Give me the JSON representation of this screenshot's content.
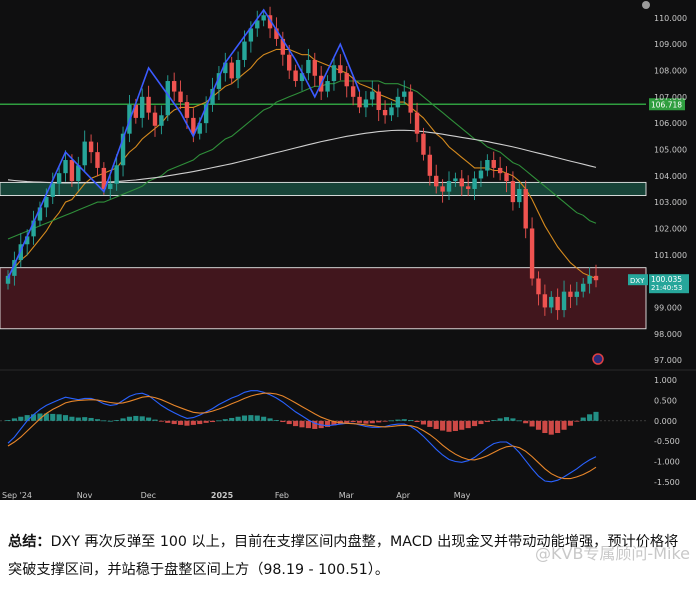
{
  "chart_data": [
    {
      "type": "candlestick",
      "symbol": "DXY",
      "last_price": "100.035",
      "countdown": "21:40:53",
      "x_tick_labels": [
        "Sep '24",
        "Nov",
        "Dec",
        "2025",
        "Feb",
        "Mar",
        "Apr",
        "May"
      ],
      "y_tick_labels": [
        "110.000",
        "109.000",
        "108.000",
        "107.000",
        "106.000",
        "105.000",
        "104.000",
        "103.000",
        "102.000",
        "101.000",
        "100.000",
        "99.000",
        "98.000",
        "97.000"
      ],
      "ylim": [
        96.7,
        110.45
      ],
      "horizontal_levels": [
        {
          "value": 106.718,
          "label": "106.718",
          "color": "#2f9e3f"
        }
      ],
      "zones": [
        {
          "low": 103.25,
          "high": 103.75,
          "color": "#1f6f5a"
        },
        {
          "low": 98.19,
          "high": 100.51,
          "color": "#6b1e28"
        }
      ],
      "closes": [
        100.2,
        100.8,
        101.4,
        101.7,
        102.3,
        102.8,
        103.2,
        103.7,
        104.1,
        104.6,
        103.8,
        104.4,
        105.3,
        104.9,
        104.3,
        103.5,
        103.7,
        104.4,
        105.6,
        106.7,
        106.2,
        107.0,
        106.4,
        105.9,
        106.3,
        107.6,
        107.2,
        106.8,
        106.2,
        105.6,
        106.0,
        106.7,
        107.3,
        107.9,
        108.3,
        107.7,
        108.4,
        109.1,
        109.6,
        109.9,
        110.1,
        109.6,
        109.2,
        108.6,
        108.0,
        107.6,
        107.9,
        108.4,
        107.8,
        107.2,
        107.6,
        108.2,
        107.9,
        107.4,
        107.0,
        106.6,
        106.9,
        107.2,
        106.5,
        106.3,
        106.6,
        107.0,
        107.2,
        106.4,
        105.6,
        104.8,
        104.0,
        103.6,
        103.4,
        103.8,
        103.9,
        103.6,
        103.5,
        103.9,
        104.2,
        104.6,
        104.3,
        104.1,
        103.8,
        103.0,
        103.5,
        102.0,
        100.1,
        99.5,
        99.0,
        99.4,
        98.9,
        99.6,
        99.4,
        99.6,
        99.9,
        100.2,
        100.035
      ],
      "moving_averages": [
        {
          "color": "#d58a1e",
          "values": [
            100.2,
            100.5,
            100.8,
            101.0,
            101.3,
            101.6,
            101.9,
            102.3,
            102.6,
            103.0,
            103.1,
            103.4,
            103.7,
            103.9,
            104.0,
            104.1,
            104.2,
            104.3,
            104.6,
            104.9,
            105.1,
            105.4,
            105.6,
            105.8,
            106.0,
            106.3,
            106.5,
            106.6,
            106.6,
            106.6,
            106.7,
            106.8,
            107.0,
            107.2,
            107.4,
            107.5,
            107.7,
            107.9,
            108.1,
            108.4,
            108.6,
            108.7,
            108.8,
            108.8,
            108.8,
            108.7,
            108.6,
            108.6,
            108.4,
            108.3,
            108.2,
            108.1,
            108.0,
            107.9,
            107.7,
            107.5,
            107.4,
            107.3,
            107.1,
            107.0,
            106.9,
            106.8,
            106.8,
            106.6,
            106.4,
            106.2,
            105.9,
            105.6,
            105.4,
            105.1,
            104.9,
            104.7,
            104.5,
            104.3,
            104.3,
            104.3,
            104.2,
            104.2,
            104.1,
            104.0,
            103.8,
            103.5,
            103.1,
            102.6,
            102.1,
            101.7,
            101.3,
            101.0,
            100.7,
            100.5,
            100.3,
            100.2,
            100.1
          ]
        },
        {
          "color": "#2f8f3a",
          "values": [
            101.6,
            101.7,
            101.8,
            101.9,
            102.0,
            102.1,
            102.2,
            102.3,
            102.4,
            102.5,
            102.6,
            102.7,
            102.8,
            102.9,
            103.0,
            103.0,
            103.1,
            103.2,
            103.3,
            103.4,
            103.5,
            103.6,
            103.8,
            103.9,
            104.0,
            104.2,
            104.3,
            104.4,
            104.5,
            104.6,
            104.8,
            104.9,
            105.0,
            105.2,
            105.4,
            105.5,
            105.7,
            105.9,
            106.1,
            106.3,
            106.5,
            106.6,
            106.8,
            106.9,
            107.0,
            107.1,
            107.2,
            107.3,
            107.4,
            107.4,
            107.5,
            107.5,
            107.6,
            107.6,
            107.6,
            107.6,
            107.6,
            107.6,
            107.6,
            107.5,
            107.5,
            107.5,
            107.4,
            107.3,
            107.2,
            107.0,
            106.8,
            106.6,
            106.4,
            106.2,
            106.0,
            105.8,
            105.6,
            105.4,
            105.3,
            105.1,
            105.0,
            104.9,
            104.7,
            104.5,
            104.4,
            104.2,
            104.0,
            103.8,
            103.6,
            103.4,
            103.2,
            103.0,
            102.8,
            102.6,
            102.5,
            102.3,
            102.2
          ]
        },
        {
          "color": "#cfcfcf",
          "values": [
            103.85,
            103.82,
            103.8,
            103.78,
            103.77,
            103.76,
            103.75,
            103.74,
            103.73,
            103.73,
            103.73,
            103.73,
            103.74,
            103.74,
            103.75,
            103.76,
            103.77,
            103.78,
            103.8,
            103.82,
            103.84,
            103.87,
            103.9,
            103.93,
            103.96,
            104.0,
            104.04,
            104.08,
            104.12,
            104.16,
            104.21,
            104.26,
            104.31,
            104.36,
            104.41,
            104.46,
            104.52,
            104.58,
            104.64,
            104.7,
            104.76,
            104.82,
            104.88,
            104.94,
            105.0,
            105.06,
            105.12,
            105.18,
            105.24,
            105.3,
            105.35,
            105.4,
            105.45,
            105.5,
            105.54,
            105.58,
            105.62,
            105.65,
            105.68,
            105.7,
            105.72,
            105.73,
            105.73,
            105.72,
            105.7,
            105.68,
            105.65,
            105.62,
            105.58,
            105.54,
            105.5,
            105.46,
            105.42,
            105.38,
            105.34,
            105.3,
            105.25,
            105.2,
            105.15,
            105.1,
            105.04,
            104.98,
            104.92,
            104.86,
            104.8,
            104.74,
            104.68,
            104.62,
            104.56,
            104.5,
            104.44,
            104.38,
            104.32
          ]
        }
      ],
      "trend_path": [
        {
          "i": 0,
          "v": 100.1
        },
        {
          "i": 9,
          "v": 104.9
        },
        {
          "i": 15,
          "v": 103.4
        },
        {
          "i": 22,
          "v": 108.1
        },
        {
          "i": 27,
          "v": 106.4
        },
        {
          "i": 29,
          "v": 105.5
        },
        {
          "i": 34,
          "v": 108.3
        },
        {
          "i": 40,
          "v": 110.3
        },
        {
          "i": 45,
          "v": 108.4
        },
        {
          "i": 48,
          "v": 107.0
        },
        {
          "i": 52,
          "v": 109.0
        },
        {
          "i": 55,
          "v": 107.2
        }
      ]
    },
    {
      "type": "macd",
      "y_tick_labels": [
        "1.000",
        "0.500",
        "0.000",
        "-0.500",
        "-1.000",
        "-1.500"
      ],
      "ylim": [
        -1.75,
        1.2
      ],
      "histogram": [
        0.02,
        0.06,
        0.1,
        0.14,
        0.16,
        0.18,
        0.18,
        0.17,
        0.16,
        0.14,
        0.1,
        0.08,
        0.09,
        0.07,
        0.04,
        0.01,
        0.0,
        0.02,
        0.06,
        0.1,
        0.12,
        0.11,
        0.08,
        0.03,
        -0.02,
        -0.05,
        -0.08,
        -0.1,
        -0.12,
        -0.1,
        -0.08,
        -0.05,
        -0.03,
        0.01,
        0.04,
        0.07,
        0.1,
        0.13,
        0.14,
        0.13,
        0.1,
        0.06,
        0.02,
        -0.03,
        -0.08,
        -0.13,
        -0.16,
        -0.18,
        -0.2,
        -0.18,
        -0.15,
        -0.11,
        -0.08,
        -0.05,
        -0.03,
        -0.05,
        -0.07,
        -0.06,
        -0.04,
        -0.02,
        0.01,
        0.03,
        0.04,
        0.02,
        -0.03,
        -0.09,
        -0.15,
        -0.2,
        -0.24,
        -0.27,
        -0.25,
        -0.22,
        -0.18,
        -0.13,
        -0.08,
        -0.03,
        0.02,
        0.06,
        0.09,
        0.06,
        0.01,
        -0.06,
        -0.14,
        -0.22,
        -0.3,
        -0.34,
        -0.3,
        -0.22,
        -0.12,
        -0.02,
        0.08,
        0.16,
        0.22
      ],
      "macd_line": [
        -0.55,
        -0.4,
        -0.2,
        0.0,
        0.15,
        0.28,
        0.38,
        0.45,
        0.52,
        0.58,
        0.55,
        0.52,
        0.55,
        0.55,
        0.5,
        0.42,
        0.38,
        0.4,
        0.5,
        0.6,
        0.66,
        0.68,
        0.62,
        0.5,
        0.38,
        0.28,
        0.2,
        0.12,
        0.06,
        0.08,
        0.14,
        0.22,
        0.3,
        0.4,
        0.48,
        0.56,
        0.62,
        0.7,
        0.74,
        0.74,
        0.7,
        0.64,
        0.56,
        0.46,
        0.34,
        0.22,
        0.12,
        0.02,
        -0.06,
        -0.1,
        -0.12,
        -0.1,
        -0.08,
        -0.06,
        -0.06,
        -0.1,
        -0.14,
        -0.16,
        -0.16,
        -0.14,
        -0.1,
        -0.08,
        -0.08,
        -0.14,
        -0.24,
        -0.38,
        -0.54,
        -0.7,
        -0.84,
        -0.95,
        -1.0,
        -1.02,
        -0.98,
        -0.9,
        -0.78,
        -0.66,
        -0.56,
        -0.52,
        -0.52,
        -0.62,
        -0.78,
        -0.98,
        -1.18,
        -1.36,
        -1.48,
        -1.5,
        -1.46,
        -1.38,
        -1.28,
        -1.18,
        -1.06,
        -0.96,
        -0.88
      ],
      "signal_line": [
        -0.62,
        -0.52,
        -0.4,
        -0.25,
        -0.1,
        0.05,
        0.18,
        0.28,
        0.36,
        0.44,
        0.48,
        0.5,
        0.51,
        0.52,
        0.51,
        0.48,
        0.45,
        0.43,
        0.44,
        0.48,
        0.53,
        0.58,
        0.6,
        0.57,
        0.52,
        0.45,
        0.38,
        0.32,
        0.26,
        0.21,
        0.19,
        0.2,
        0.24,
        0.29,
        0.35,
        0.42,
        0.48,
        0.55,
        0.61,
        0.65,
        0.68,
        0.68,
        0.66,
        0.61,
        0.53,
        0.44,
        0.35,
        0.26,
        0.17,
        0.09,
        0.03,
        -0.02,
        -0.05,
        -0.06,
        -0.07,
        -0.08,
        -0.1,
        -0.12,
        -0.14,
        -0.15,
        -0.14,
        -0.12,
        -0.11,
        -0.12,
        -0.16,
        -0.24,
        -0.34,
        -0.46,
        -0.6,
        -0.72,
        -0.82,
        -0.9,
        -0.95,
        -0.96,
        -0.92,
        -0.86,
        -0.78,
        -0.7,
        -0.64,
        -0.62,
        -0.66,
        -0.75,
        -0.88,
        -1.03,
        -1.18,
        -1.3,
        -1.38,
        -1.42,
        -1.42,
        -1.38,
        -1.32,
        -1.24,
        -1.14
      ]
    }
  ],
  "summary": {
    "label": "总结：",
    "text": "DXY 再次反弹至 100 以上，目前在支撑区间内盘整，MACD 出现金叉并带动动能增强，预计价格将突破支撑区间，并站稳于盘整区间上方（98.19 - 100.51）。"
  },
  "watermark": "@KVB专属顾问-Mike",
  "colors": {
    "background": "#0f0f10",
    "up": "#26a69a",
    "down": "#ef5350",
    "trend_line": "#3b5bff",
    "axis_text": "#c8c8c8",
    "price_tag": "#26a69a"
  }
}
